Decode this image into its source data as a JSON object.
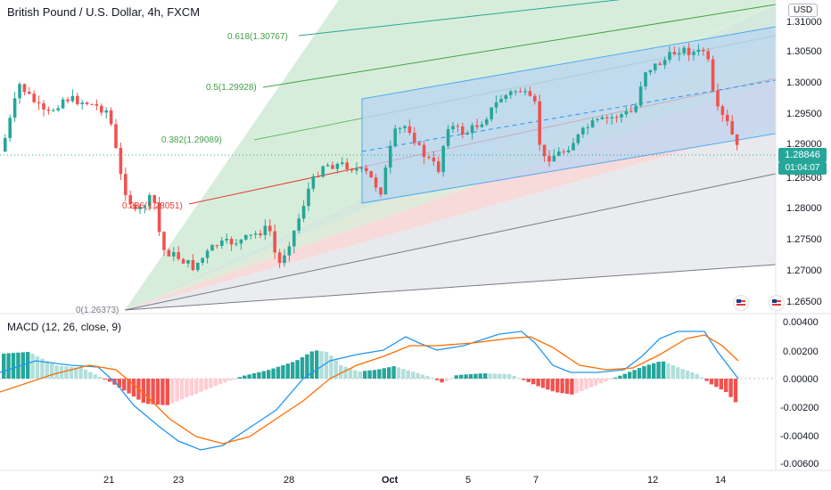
{
  "header": {
    "symbol": "British Pound / U.S. Dollar, 4h, FXCM",
    "currency": "USD"
  },
  "price_axis": {
    "ticks": [
      "1.31000",
      "1.30500",
      "1.30000",
      "1.29500",
      "1.29000",
      "1.28500",
      "1.28000",
      "1.27500",
      "1.27000",
      "1.26500"
    ],
    "last_price": "1.28846",
    "countdown": "01:04:07"
  },
  "fib_labels": [
    {
      "text": "0.618(1.30767)",
      "color": "#43a047"
    },
    {
      "text": "0.5(1.29928)",
      "color": "#43a047"
    },
    {
      "text": "0.382(1.29089)",
      "color": "#43a047"
    },
    {
      "text": "0.236(1.28051)",
      "color": "#e53935"
    },
    {
      "text": "0(1.26373)",
      "color": "#787b86"
    }
  ],
  "macd": {
    "title": "MACD (12, 26, close, 9)",
    "ticks": [
      "0.00400",
      "0.00200",
      "0.00000",
      "-0.00200",
      "-0.00400",
      "-0.00600"
    ]
  },
  "time_axis": {
    "ticks": [
      "21",
      "23",
      "28",
      "Oct",
      "5",
      "7",
      "12",
      "14"
    ]
  },
  "colors": {
    "up": "#26a69a",
    "down": "#ef5350",
    "macd_line": "#2196f3",
    "signal_line": "#ff6d00"
  },
  "icons": [
    "us-flag-icon",
    "us-flag-icon"
  ]
}
